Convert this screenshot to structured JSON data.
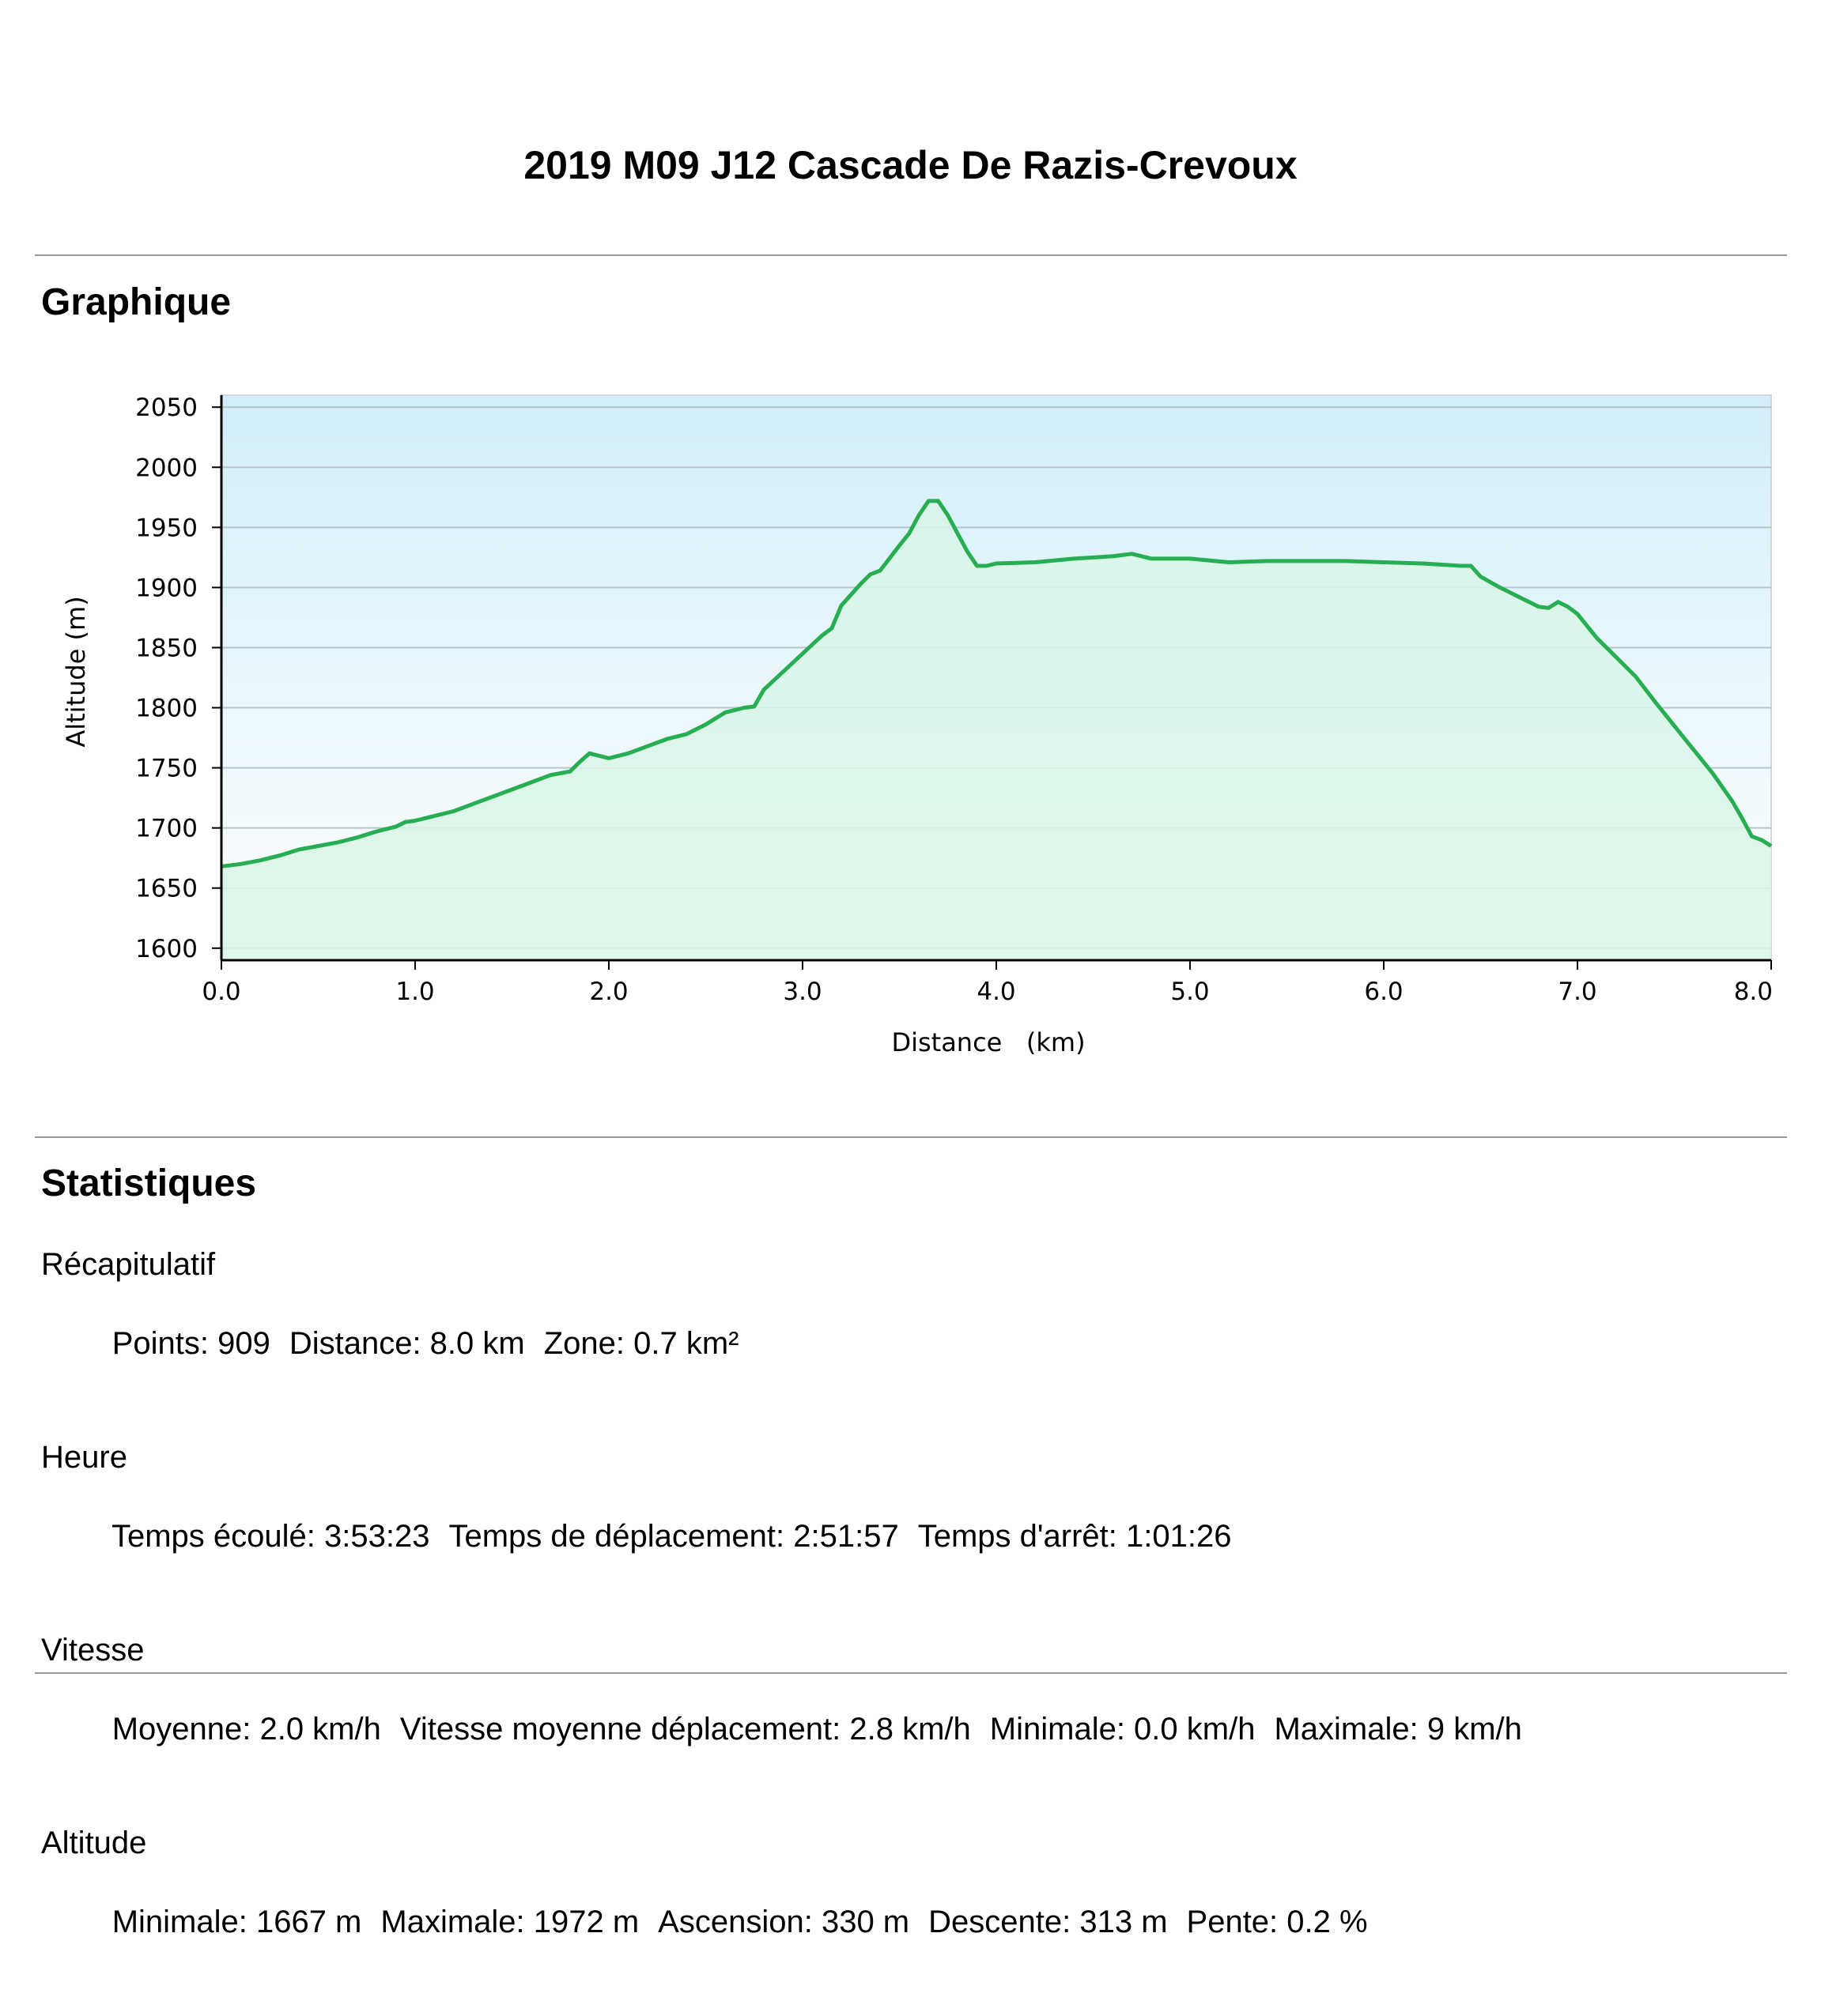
{
  "page_title": "2019 M09 J12 Cascade De Razis-Crevoux",
  "sections": {
    "chart_heading": "Graphique",
    "stats_heading": "Statistiques"
  },
  "chart_data": {
    "type": "area",
    "xlabel": "Distance   (km)",
    "ylabel": "Altitude (m)",
    "xlim": [
      0,
      8.0
    ],
    "ylim": [
      1590,
      2060
    ],
    "x_ticks": [
      "0.0",
      "1.0",
      "2.0",
      "3.0",
      "4.0",
      "5.0",
      "6.0",
      "7.0",
      "8.0"
    ],
    "y_ticks": [
      "1600",
      "1650",
      "1700",
      "1750",
      "1800",
      "1850",
      "1900",
      "1950",
      "2000",
      "2050"
    ],
    "grid": true,
    "colors": {
      "line": "#27ae52",
      "fill": "#d9f5e6",
      "sky_top": "#d2eef9",
      "sky_bottom": "#ffffff",
      "grid": "#b8c4cc"
    },
    "series": [
      {
        "x": [
          0.0,
          0.1,
          0.2,
          0.3,
          0.4,
          0.5,
          0.6,
          0.7,
          0.8,
          0.9,
          0.95,
          1.0,
          1.1,
          1.2,
          1.3,
          1.4,
          1.5,
          1.6,
          1.7,
          1.8,
          1.85,
          1.9,
          2.0,
          2.1,
          2.2,
          2.3,
          2.4,
          2.5,
          2.6,
          2.7,
          2.75,
          2.8,
          2.9,
          3.0,
          3.1,
          3.15,
          3.2,
          3.3,
          3.35,
          3.4,
          3.5,
          3.55,
          3.6,
          3.65,
          3.7,
          3.75,
          3.8,
          3.85,
          3.9,
          3.95,
          4.0,
          4.2,
          4.4,
          4.6,
          4.7,
          4.8,
          5.0,
          5.2,
          5.4,
          5.6,
          5.8,
          6.0,
          6.2,
          6.4,
          6.45,
          6.5,
          6.6,
          6.7,
          6.8,
          6.85,
          6.9,
          6.95,
          7.0,
          7.1,
          7.2,
          7.3,
          7.4,
          7.5,
          7.6,
          7.7,
          7.8,
          7.85,
          7.9,
          7.95,
          8.0
        ],
        "values": [
          1668,
          1670,
          1673,
          1677,
          1682,
          1685,
          1688,
          1692,
          1697,
          1701,
          1705,
          1706,
          1710,
          1714,
          1720,
          1726,
          1732,
          1738,
          1744,
          1747,
          1755,
          1762,
          1758,
          1762,
          1768,
          1774,
          1778,
          1786,
          1796,
          1800,
          1801,
          1815,
          1830,
          1845,
          1860,
          1866,
          1885,
          1903,
          1911,
          1914,
          1935,
          1945,
          1960,
          1972,
          1972,
          1960,
          1945,
          1930,
          1918,
          1918,
          1920,
          1921,
          1924,
          1926,
          1928,
          1924,
          1924,
          1921,
          1922,
          1922,
          1922,
          1921,
          1920,
          1918,
          1918,
          1909,
          1900,
          1892,
          1884,
          1883,
          1888,
          1884,
          1878,
          1858,
          1842,
          1826,
          1805,
          1785,
          1765,
          1745,
          1722,
          1708,
          1693,
          1690,
          1685
        ]
      }
    ]
  },
  "stats": {
    "groups": [
      {
        "title": "Récapitulatif",
        "items": [
          "Points: 909",
          "Distance: 8.0 km",
          "Zone: 0.7 km²"
        ]
      },
      {
        "title": "Heure",
        "items": [
          "Temps écoulé: 3:53:23",
          "Temps de déplacement: 2:51:57",
          "Temps d'arrêt: 1:01:26"
        ]
      },
      {
        "title": "Vitesse",
        "items": [
          "Moyenne: 2.0 km/h",
          "Vitesse moyenne déplacement: 2.8 km/h",
          "Minimale: 0.0 km/h",
          "Maximale: 9 km/h"
        ]
      },
      {
        "title": "Altitude",
        "items": [
          "Minimale: 1667 m",
          "Maximale: 1972 m",
          "Ascension: 330 m",
          "Descente: 313 m",
          "Pente: 0.2 %"
        ]
      }
    ]
  }
}
